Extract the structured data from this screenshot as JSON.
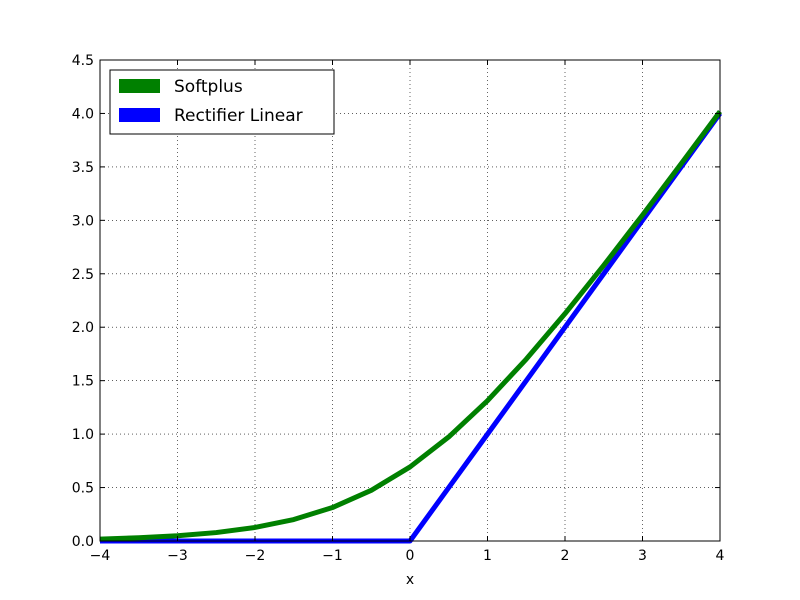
{
  "chart_data": {
    "type": "line",
    "title": "",
    "xlabel": "x",
    "ylabel": "",
    "xlim": [
      -4,
      4
    ],
    "ylim": [
      0,
      4.5
    ],
    "grid": true,
    "legend_position": "top-left",
    "x_ticks": [
      -4,
      -3,
      -2,
      -1,
      0,
      1,
      2,
      3,
      4
    ],
    "x_tick_labels": [
      "−4",
      "−3",
      "−2",
      "−1",
      "0",
      "1",
      "2",
      "3",
      "4"
    ],
    "y_ticks": [
      0,
      0.5,
      1,
      1.5,
      2,
      2.5,
      3,
      3.5,
      4,
      4.5
    ],
    "y_tick_labels": [
      "0.0",
      "0.5",
      "1.0",
      "1.5",
      "2.0",
      "2.5",
      "3.0",
      "3.5",
      "4.0",
      "4.5"
    ],
    "x": [
      -4,
      -3.5,
      -3,
      -2.5,
      -2,
      -1.5,
      -1,
      -0.5,
      0,
      0.5,
      1,
      1.5,
      2,
      2.5,
      3,
      3.5,
      4
    ],
    "series": [
      {
        "name": "Softplus",
        "color": "#008000",
        "values": [
          0.018,
          0.03,
          0.049,
          0.079,
          0.127,
          0.201,
          0.313,
          0.474,
          0.693,
          0.974,
          1.313,
          1.701,
          2.127,
          2.579,
          3.049,
          3.53,
          4.018
        ]
      },
      {
        "name": "Rectifier Linear",
        "color": "#0000ff",
        "values": [
          0,
          0,
          0,
          0,
          0,
          0,
          0,
          0,
          0,
          0.5,
          1,
          1.5,
          2,
          2.5,
          3,
          3.5,
          4
        ]
      }
    ]
  }
}
